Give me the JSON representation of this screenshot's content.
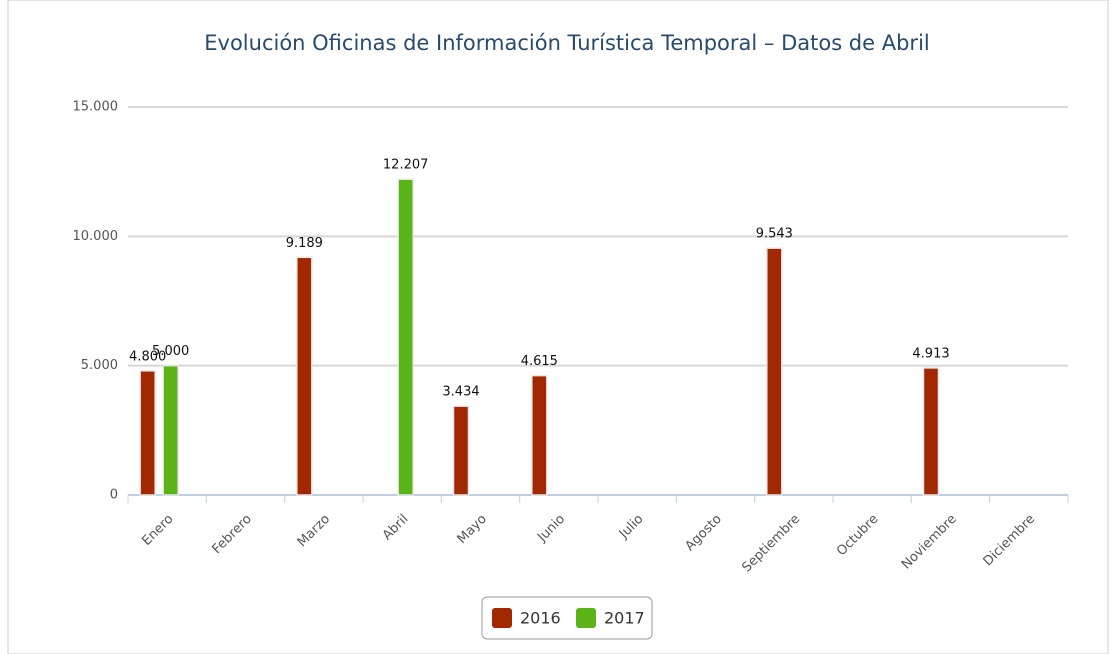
{
  "chart_data": {
    "type": "bar",
    "title": "Evolución Oficinas de Información Turística Temporal – Datos de Abril",
    "categories": [
      "Enero",
      "Febrero",
      "Marzo",
      "Abril",
      "Mayo",
      "Junio",
      "Julio",
      "Agosto",
      "Septiembre",
      "Octubre",
      "Noviembre",
      "Diciembre"
    ],
    "series": [
      {
        "name": "2016",
        "color": "#a12800",
        "values": [
          4800,
          null,
          9189,
          null,
          3434,
          4615,
          null,
          null,
          9543,
          null,
          4913,
          null
        ],
        "value_labels": [
          "4.800",
          null,
          "9.189",
          null,
          "3.434",
          "4.615",
          null,
          null,
          "9.543",
          null,
          "4.913",
          null
        ]
      },
      {
        "name": "2017",
        "color": "#5bb318",
        "values": [
          5000,
          null,
          null,
          12207,
          null,
          null,
          null,
          null,
          null,
          null,
          null,
          null
        ],
        "value_labels": [
          "5.000",
          null,
          null,
          "12.207",
          null,
          null,
          null,
          null,
          null,
          null,
          null,
          null
        ]
      }
    ],
    "ylim": [
      0,
      15000
    ],
    "yticks": [
      0,
      {
        "value": 5000,
        "label": "5.000"
      },
      {
        "value": 10000,
        "label": "10.000"
      },
      {
        "value": 15000,
        "label": "15.000"
      }
    ],
    "grid": true,
    "legend": "bottom"
  }
}
